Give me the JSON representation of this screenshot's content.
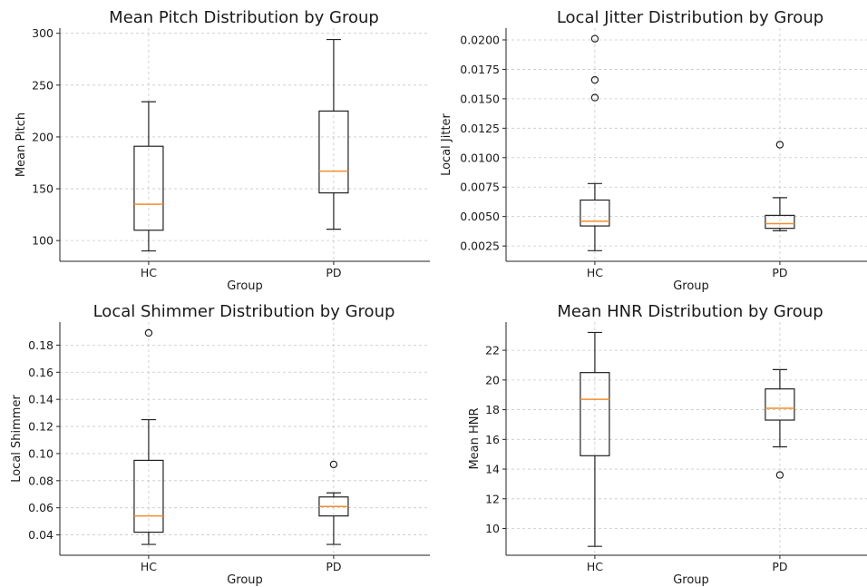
{
  "chart_data": [
    {
      "type": "box",
      "title": "Mean Pitch Distribution by Group",
      "xlabel": "Group",
      "ylabel": "Mean Pitch",
      "categories": [
        "HC",
        "PD"
      ],
      "ylim": [
        80,
        305
      ],
      "yticks": [
        100,
        150,
        200,
        250,
        300
      ],
      "ytick_labels": [
        "100",
        "150",
        "200",
        "250",
        "300"
      ],
      "grid": true,
      "boxes": [
        {
          "whislo": 90,
          "q1": 110,
          "med": 135,
          "q3": 191,
          "whishi": 234,
          "fliers": []
        },
        {
          "whislo": 111,
          "q1": 146,
          "med": 167,
          "q3": 225,
          "whishi": 294,
          "fliers": []
        }
      ]
    },
    {
      "type": "box",
      "title": "Local Jitter Distribution by Group",
      "xlabel": "Group",
      "ylabel": "Local Jitter",
      "categories": [
        "HC",
        "PD"
      ],
      "ylim": [
        0.0012,
        0.021
      ],
      "yticks": [
        0.0025,
        0.005,
        0.0075,
        0.01,
        0.0125,
        0.015,
        0.0175,
        0.02
      ],
      "ytick_labels": [
        "0.0025",
        "0.0050",
        "0.0075",
        "0.0100",
        "0.0125",
        "0.0150",
        "0.0175",
        "0.0200"
      ],
      "grid": true,
      "boxes": [
        {
          "whislo": 0.0021,
          "q1": 0.0042,
          "med": 0.0046,
          "q3": 0.0064,
          "whishi": 0.0078,
          "fliers": [
            0.0151,
            0.0166,
            0.0201
          ]
        },
        {
          "whislo": 0.0038,
          "q1": 0.004,
          "med": 0.0044,
          "q3": 0.0051,
          "whishi": 0.0066,
          "fliers": [
            0.0111
          ]
        }
      ]
    },
    {
      "type": "box",
      "title": "Local Shimmer Distribution by Group",
      "xlabel": "Group",
      "ylabel": "Local Shimmer",
      "categories": [
        "HC",
        "PD"
      ],
      "ylim": [
        0.025,
        0.197
      ],
      "yticks": [
        0.04,
        0.06,
        0.08,
        0.1,
        0.12,
        0.14,
        0.16,
        0.18
      ],
      "ytick_labels": [
        "0.04",
        "0.06",
        "0.08",
        "0.10",
        "0.12",
        "0.14",
        "0.16",
        "0.18"
      ],
      "grid": true,
      "boxes": [
        {
          "whislo": 0.033,
          "q1": 0.042,
          "med": 0.054,
          "q3": 0.095,
          "whishi": 0.125,
          "fliers": [
            0.189
          ]
        },
        {
          "whislo": 0.033,
          "q1": 0.054,
          "med": 0.061,
          "q3": 0.068,
          "whishi": 0.071,
          "fliers": [
            0.092
          ]
        }
      ]
    },
    {
      "type": "box",
      "title": "Mean HNR Distribution by Group",
      "xlabel": "Group",
      "ylabel": "Mean HNR",
      "categories": [
        "HC",
        "PD"
      ],
      "ylim": [
        8.2,
        23.9
      ],
      "yticks": [
        10,
        12,
        14,
        16,
        18,
        20,
        22
      ],
      "ytick_labels": [
        "10",
        "12",
        "14",
        "16",
        "18",
        "20",
        "22"
      ],
      "grid": true,
      "boxes": [
        {
          "whislo": 8.8,
          "q1": 14.9,
          "med": 18.7,
          "q3": 20.5,
          "whishi": 23.2,
          "fliers": []
        },
        {
          "whislo": 15.5,
          "q1": 17.3,
          "med": 18.1,
          "q3": 19.4,
          "whishi": 20.7,
          "fliers": [
            13.6
          ]
        }
      ]
    }
  ]
}
